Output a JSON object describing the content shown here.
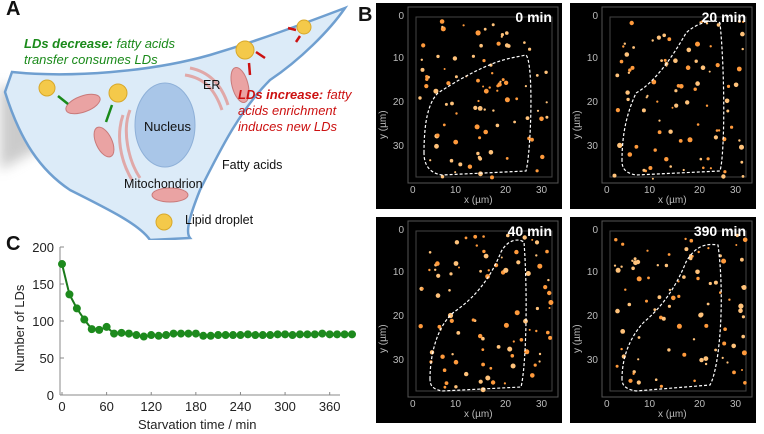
{
  "panel_a": {
    "label": "A",
    "decrease_title": "LDs decrease:",
    "decrease_text_1": "fatty acids",
    "decrease_text_2": "transfer consumes LDs",
    "increase_title": "LDs increase:",
    "increase_text_1": "fatty",
    "increase_text_2": "acids enrichment",
    "increase_text_3": "induces new LDs",
    "labels": {
      "er": "ER",
      "nucleus": "Nucleus",
      "fatty_acids": "Fatty acids",
      "mitochondrion": "Mitochondrion",
      "lipid_droplet": "Lipid droplet"
    },
    "colors": {
      "decrease": "#1a8a1a",
      "increase": "#cc1111",
      "cell": "#d9e9f7",
      "membrane": "#6f9fd0",
      "nucleus": "#a9c6e8",
      "mito": "#e8a0a0",
      "droplet": "#f2c94c"
    }
  },
  "panel_b": {
    "label": "B",
    "x_label": "x (µm)",
    "y_label": "y (µm)",
    "x_ticks": [
      "0",
      "10",
      "20",
      "30"
    ],
    "y_ticks": [
      "0",
      "10",
      "20",
      "30"
    ],
    "frames": [
      {
        "time": "0 min"
      },
      {
        "time": "20 min"
      },
      {
        "time": "40 min"
      },
      {
        "time": "390 min"
      }
    ]
  },
  "chart_data": {
    "type": "line",
    "panel_label": "C",
    "xlabel": "Starvation time / min",
    "ylabel": "Number of LDs",
    "xlim": [
      0,
      390
    ],
    "ylim": [
      0,
      200
    ],
    "x_ticks": [
      0,
      60,
      120,
      180,
      240,
      300,
      360
    ],
    "y_ticks": [
      0,
      50,
      100,
      150,
      200
    ],
    "grid": false,
    "color": "#1a7a1a",
    "x": [
      0,
      10,
      20,
      30,
      40,
      50,
      60,
      70,
      80,
      90,
      100,
      110,
      120,
      130,
      140,
      150,
      160,
      170,
      180,
      190,
      200,
      210,
      220,
      230,
      240,
      250,
      260,
      270,
      280,
      290,
      300,
      310,
      320,
      330,
      340,
      350,
      360,
      370,
      380,
      390
    ],
    "y": [
      177,
      136,
      117,
      102,
      89,
      88,
      92,
      83,
      84,
      83,
      81,
      79,
      81,
      80,
      81,
      83,
      83,
      83,
      83,
      80,
      80,
      81,
      81,
      81,
      81,
      82,
      81,
      81,
      81,
      82,
      82,
      81,
      82,
      82,
      82,
      83,
      82,
      82,
      82,
      82
    ]
  }
}
